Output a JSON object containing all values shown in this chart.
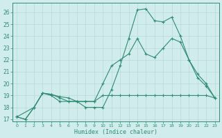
{
  "line1_x": [
    0,
    1,
    2,
    3,
    4,
    5,
    6,
    7,
    8,
    9,
    10,
    11,
    12,
    13,
    14,
    15,
    16,
    17,
    18,
    19,
    20,
    21,
    22,
    23
  ],
  "line1_y": [
    17.2,
    17.0,
    18.0,
    19.2,
    19.1,
    18.9,
    18.8,
    18.5,
    18.5,
    18.5,
    19.0,
    19.0,
    19.0,
    19.0,
    19.0,
    19.0,
    19.0,
    19.0,
    19.0,
    19.0,
    19.0,
    19.0,
    19.0,
    18.8
  ],
  "line2_x": [
    0,
    2,
    3,
    4,
    5,
    6,
    7,
    8,
    9,
    10,
    11,
    12,
    13,
    14,
    15,
    16,
    17,
    18,
    19,
    20,
    21,
    22,
    23
  ],
  "line2_y": [
    17.2,
    18.0,
    19.2,
    19.0,
    18.5,
    18.5,
    18.5,
    18.5,
    18.5,
    20.0,
    21.5,
    22.0,
    22.5,
    23.8,
    22.5,
    22.2,
    23.0,
    23.8,
    23.5,
    22.0,
    20.5,
    19.8,
    18.8
  ],
  "line3_x": [
    0,
    1,
    2,
    3,
    4,
    5,
    6,
    7,
    8,
    9,
    10,
    11,
    12,
    13,
    14,
    15,
    16,
    17,
    18,
    19,
    20,
    21,
    22,
    23
  ],
  "line3_y": [
    17.2,
    17.0,
    18.0,
    19.2,
    19.1,
    18.8,
    18.5,
    18.5,
    18.0,
    18.0,
    18.0,
    19.5,
    21.5,
    23.8,
    26.2,
    26.3,
    25.3,
    25.2,
    25.6,
    24.0,
    22.0,
    20.8,
    20.0,
    18.8
  ],
  "color": "#2e8b74",
  "bg_color": "#d0ecec",
  "grid_color": "#b8d8d8",
  "xlabel": "Humidex (Indice chaleur)",
  "xlim": [
    -0.5,
    23.5
  ],
  "ylim": [
    16.8,
    26.8
  ],
  "xticks": [
    0,
    1,
    2,
    3,
    4,
    5,
    6,
    7,
    8,
    9,
    10,
    11,
    12,
    13,
    14,
    15,
    16,
    17,
    18,
    19,
    20,
    21,
    22,
    23
  ],
  "yticks": [
    17,
    18,
    19,
    20,
    21,
    22,
    23,
    24,
    25,
    26
  ]
}
